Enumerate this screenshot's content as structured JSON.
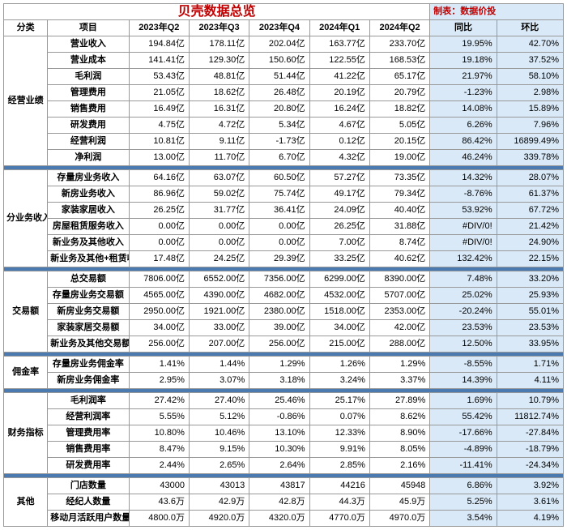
{
  "title": "贝壳数据总览",
  "credit": "制表：数据价投",
  "headers": {
    "cat": "分类",
    "item": "项目",
    "periods": [
      "2023年Q2",
      "2023年Q3",
      "2023年Q4",
      "2024年Q1",
      "2024年Q2"
    ],
    "yoy": "同比",
    "qoq": "环比"
  },
  "colors": {
    "title": "#c00000",
    "cmp_bg": "#d9e9f7",
    "sep_bg": "#4a7ab0",
    "border": "#999999"
  },
  "groups": [
    {
      "cat": "经营业绩",
      "rows": [
        {
          "item": "营业收入",
          "v": [
            "194.84亿",
            "178.11亿",
            "202.04亿",
            "163.77亿",
            "233.70亿"
          ],
          "yoy": "19.95%",
          "qoq": "42.70%"
        },
        {
          "item": "营业成本",
          "v": [
            "141.41亿",
            "129.30亿",
            "150.60亿",
            "122.55亿",
            "168.53亿"
          ],
          "yoy": "19.18%",
          "qoq": "37.52%"
        },
        {
          "item": "毛利润",
          "v": [
            "53.43亿",
            "48.81亿",
            "51.44亿",
            "41.22亿",
            "65.17亿"
          ],
          "yoy": "21.97%",
          "qoq": "58.10%"
        },
        {
          "item": "管理费用",
          "v": [
            "21.05亿",
            "18.62亿",
            "26.48亿",
            "20.19亿",
            "20.79亿"
          ],
          "yoy": "-1.23%",
          "qoq": "2.98%"
        },
        {
          "item": "销售费用",
          "v": [
            "16.49亿",
            "16.31亿",
            "20.80亿",
            "16.24亿",
            "18.82亿"
          ],
          "yoy": "14.08%",
          "qoq": "15.89%"
        },
        {
          "item": "研发费用",
          "v": [
            "4.75亿",
            "4.72亿",
            "5.34亿",
            "4.67亿",
            "5.05亿"
          ],
          "yoy": "6.26%",
          "qoq": "7.96%"
        },
        {
          "item": "经营利润",
          "v": [
            "10.81亿",
            "9.11亿",
            "-1.73亿",
            "0.12亿",
            "20.15亿"
          ],
          "yoy": "86.42%",
          "qoq": "16899.49%"
        },
        {
          "item": "净利润",
          "v": [
            "13.00亿",
            "11.70亿",
            "6.70亿",
            "4.32亿",
            "19.00亿"
          ],
          "yoy": "46.24%",
          "qoq": "339.78%"
        }
      ]
    },
    {
      "cat": "分业务收入",
      "rows": [
        {
          "item": "存量房业务收入",
          "v": [
            "64.16亿",
            "63.07亿",
            "60.50亿",
            "57.27亿",
            "73.35亿"
          ],
          "yoy": "14.32%",
          "qoq": "28.07%"
        },
        {
          "item": "新房业务收入",
          "v": [
            "86.96亿",
            "59.02亿",
            "75.74亿",
            "49.17亿",
            "79.34亿"
          ],
          "yoy": "-8.76%",
          "qoq": "61.37%"
        },
        {
          "item": "家装家居收入",
          "v": [
            "26.25亿",
            "31.77亿",
            "36.41亿",
            "24.09亿",
            "40.40亿"
          ],
          "yoy": "53.92%",
          "qoq": "67.72%"
        },
        {
          "item": "房屋租赁服务收入",
          "v": [
            "0.00亿",
            "0.00亿",
            "0.00亿",
            "26.25亿",
            "31.88亿"
          ],
          "yoy": "#DIV/0!",
          "qoq": "21.42%"
        },
        {
          "item": "新业务及其他收入",
          "v": [
            "0.00亿",
            "0.00亿",
            "0.00亿",
            "7.00亿",
            "8.74亿"
          ],
          "yoy": "#DIV/0!",
          "qoq": "24.90%"
        },
        {
          "item": "新业务及其他+租赁收入",
          "v": [
            "17.48亿",
            "24.25亿",
            "29.39亿",
            "33.25亿",
            "40.62亿"
          ],
          "yoy": "132.42%",
          "qoq": "22.15%"
        }
      ]
    },
    {
      "cat": "交易额",
      "rows": [
        {
          "item": "总交易额",
          "v": [
            "7806.00亿",
            "6552.00亿",
            "7356.00亿",
            "6299.00亿",
            "8390.00亿"
          ],
          "yoy": "7.48%",
          "qoq": "33.20%"
        },
        {
          "item": "存量房业务交易额",
          "v": [
            "4565.00亿",
            "4390.00亿",
            "4682.00亿",
            "4532.00亿",
            "5707.00亿"
          ],
          "yoy": "25.02%",
          "qoq": "25.93%"
        },
        {
          "item": "新房业务交易额",
          "v": [
            "2950.00亿",
            "1921.00亿",
            "2380.00亿",
            "1518.00亿",
            "2353.00亿"
          ],
          "yoy": "-20.24%",
          "qoq": "55.01%"
        },
        {
          "item": "家装家居交易额",
          "v": [
            "34.00亿",
            "33.00亿",
            "39.00亿",
            "34.00亿",
            "42.00亿"
          ],
          "yoy": "23.53%",
          "qoq": "23.53%"
        },
        {
          "item": "新业务及其他交易额",
          "v": [
            "256.00亿",
            "207.00亿",
            "256.00亿",
            "215.00亿",
            "288.00亿"
          ],
          "yoy": "12.50%",
          "qoq": "33.95%"
        }
      ]
    },
    {
      "cat": "佣金率",
      "rows": [
        {
          "item": "存量房业务佣金率",
          "v": [
            "1.41%",
            "1.44%",
            "1.29%",
            "1.26%",
            "1.29%"
          ],
          "yoy": "-8.55%",
          "qoq": "1.71%"
        },
        {
          "item": "新房业务佣金率",
          "v": [
            "2.95%",
            "3.07%",
            "3.18%",
            "3.24%",
            "3.37%"
          ],
          "yoy": "14.39%",
          "qoq": "4.11%"
        }
      ]
    },
    {
      "cat": "财务指标",
      "rows": [
        {
          "item": "毛利润率",
          "v": [
            "27.42%",
            "27.40%",
            "25.46%",
            "25.17%",
            "27.89%"
          ],
          "yoy": "1.69%",
          "qoq": "10.79%"
        },
        {
          "item": "经营利润率",
          "v": [
            "5.55%",
            "5.12%",
            "-0.86%",
            "0.07%",
            "8.62%"
          ],
          "yoy": "55.42%",
          "qoq": "11812.74%"
        },
        {
          "item": "管理费用率",
          "v": [
            "10.80%",
            "10.46%",
            "13.10%",
            "12.33%",
            "8.90%"
          ],
          "yoy": "-17.66%",
          "qoq": "-27.84%"
        },
        {
          "item": "销售费用率",
          "v": [
            "8.47%",
            "9.15%",
            "10.30%",
            "9.91%",
            "8.05%"
          ],
          "yoy": "-4.89%",
          "qoq": "-18.79%"
        },
        {
          "item": "研发费用率",
          "v": [
            "2.44%",
            "2.65%",
            "2.64%",
            "2.85%",
            "2.16%"
          ],
          "yoy": "-11.41%",
          "qoq": "-24.34%"
        }
      ]
    },
    {
      "cat": "其他",
      "rows": [
        {
          "item": "门店数量",
          "v": [
            "43000",
            "43013",
            "43817",
            "44216",
            "45948"
          ],
          "yoy": "6.86%",
          "qoq": "3.92%"
        },
        {
          "item": "经纪人数量",
          "v": [
            "43.6万",
            "42.9万",
            "42.8万",
            "44.3万",
            "45.9万"
          ],
          "yoy": "5.25%",
          "qoq": "3.61%"
        },
        {
          "item": "移动月活跃用户数量",
          "v": [
            "4800.0万",
            "4920.0万",
            "4320.0万",
            "4770.0万",
            "4970.0万"
          ],
          "yoy": "3.54%",
          "qoq": "4.19%"
        }
      ]
    }
  ]
}
